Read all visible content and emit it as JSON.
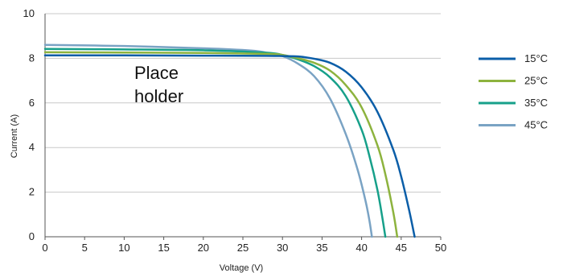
{
  "chart_data": {
    "type": "line",
    "title": "",
    "xlabel": "Voltage (V)",
    "ylabel": "Current (A)",
    "xlim": [
      0,
      50
    ],
    "ylim": [
      0,
      10
    ],
    "xticks": [
      0,
      5,
      10,
      15,
      20,
      25,
      30,
      35,
      40,
      45,
      50
    ],
    "yticks": [
      0,
      2,
      4,
      6,
      8,
      10
    ],
    "grid": "horizontal",
    "legend_position": "right",
    "annotation": [
      "Place",
      "holder"
    ],
    "series": [
      {
        "name": "15°C",
        "color": "#0b5ea8",
        "x": [
          0,
          10,
          20,
          28,
          30,
          32,
          34,
          36,
          38,
          40,
          42,
          44,
          45,
          46,
          46.7
        ],
        "y": [
          8.13,
          8.13,
          8.12,
          8.11,
          8.1,
          8.08,
          7.98,
          7.8,
          7.4,
          6.7,
          5.6,
          3.9,
          2.7,
          1.2,
          0
        ]
      },
      {
        "name": "25°C",
        "color": "#8db33e",
        "x": [
          0,
          10,
          20,
          28,
          30,
          32,
          34,
          36,
          38,
          40,
          42,
          43,
          44,
          44.5
        ],
        "y": [
          8.27,
          8.26,
          8.24,
          8.2,
          8.15,
          8.0,
          7.8,
          7.45,
          6.8,
          5.8,
          4.1,
          2.8,
          1.1,
          0
        ]
      },
      {
        "name": "35°C",
        "color": "#17a08a",
        "x": [
          0,
          10,
          20,
          28,
          30,
          32,
          34,
          36,
          38,
          40,
          41,
          42,
          42.6,
          43
        ],
        "y": [
          8.42,
          8.4,
          8.36,
          8.25,
          8.15,
          7.95,
          7.65,
          7.15,
          6.3,
          4.8,
          3.6,
          2.1,
          0.9,
          0
        ]
      },
      {
        "name": "45°C",
        "color": "#7aa3c4",
        "x": [
          0,
          10,
          20,
          26,
          28,
          30,
          32,
          34,
          36,
          38,
          39.5,
          40.5,
          41,
          41.3
        ],
        "y": [
          8.6,
          8.55,
          8.45,
          8.35,
          8.25,
          8.1,
          7.75,
          7.2,
          6.2,
          4.6,
          3.0,
          1.6,
          0.7,
          0
        ]
      }
    ]
  }
}
